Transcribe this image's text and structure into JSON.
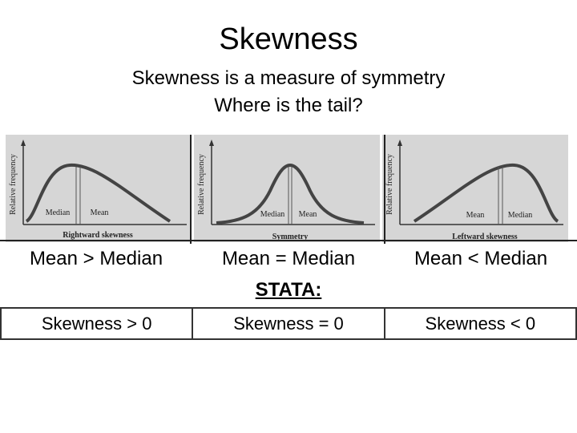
{
  "title": "Skewness",
  "subtitle_line1": "Skewness is a measure of symmetry",
  "subtitle_line2": "Where is the tail?",
  "panels": [
    {
      "axis_label": "Relative frequency",
      "caption": "Rightward skewness",
      "label_a": "Median",
      "label_b": "Mean"
    },
    {
      "axis_label": "Relative frequency",
      "caption": "Symmetry",
      "label_a": "Median",
      "label_b": "Mean"
    },
    {
      "axis_label": "Relative frequency",
      "caption": "Leftward skewness",
      "label_a": "Mean",
      "label_b": "Median"
    }
  ],
  "relations": [
    "Mean > Median",
    "Mean = Median",
    "Mean < Median"
  ],
  "stata_label": "STATA:",
  "skewness": [
    "Skewness > 0",
    "Skewness = 0",
    "Skewness < 0"
  ],
  "colors": {
    "curve": "#444444",
    "panel_bg": "#d6d6d6"
  }
}
